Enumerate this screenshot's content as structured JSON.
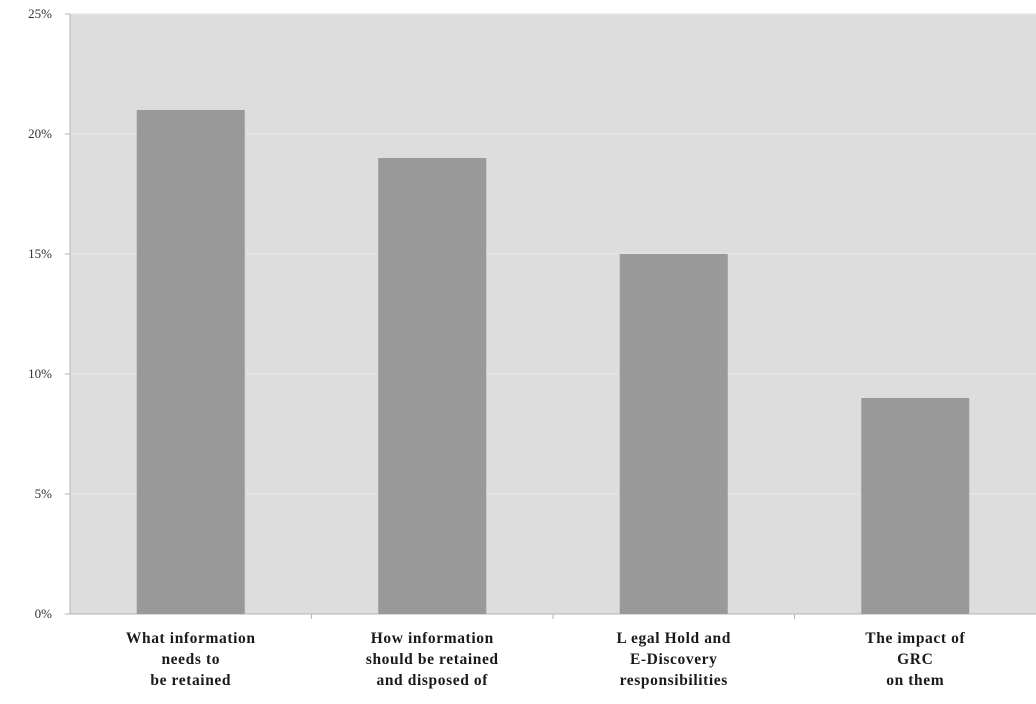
{
  "chart_data": {
    "type": "bar",
    "title": "",
    "xlabel": "",
    "ylabel": "",
    "categories": [
      [
        "What information",
        "needs to",
        "be retained"
      ],
      [
        "How information",
        "should be retained",
        "and disposed of"
      ],
      [
        "L egal Hold and",
        "E-Discovery",
        "responsibilities"
      ],
      [
        "The impact of",
        "GRC",
        "on them"
      ]
    ],
    "values": [
      21,
      19,
      15,
      9
    ],
    "ylim": [
      0,
      25
    ],
    "yticks": [
      0,
      5,
      10,
      15,
      20,
      25
    ],
    "ytick_labels": [
      "0%",
      "5%",
      "10%",
      "15%",
      "20%",
      "25%"
    ],
    "grid": true,
    "legend": "none",
    "colors": {
      "bar": "#999999",
      "plot_background": "#dddddd",
      "gridline": "#e6e6e6",
      "axis": "#b3b3b3"
    }
  }
}
